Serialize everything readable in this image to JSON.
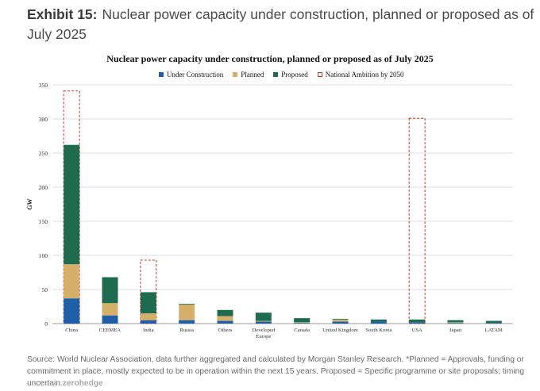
{
  "exhibit": {
    "label": "Exhibit 15:",
    "title": "Nuclear power capacity under construction, planned or proposed as of July 2025"
  },
  "chart_data": {
    "type": "bar",
    "stacked": true,
    "title": "Nuclear power capacity under construction, planned or proposed as of July 2025",
    "ylabel": "GW",
    "ylim": [
      0,
      350
    ],
    "yticks": [
      0,
      50,
      100,
      150,
      200,
      250,
      300,
      350
    ],
    "categories": [
      [
        "China"
      ],
      [
        "CEEMEA"
      ],
      [
        "India"
      ],
      [
        "Russia"
      ],
      [
        "Others"
      ],
      [
        "Developed",
        "Europe"
      ],
      [
        "Canada"
      ],
      [
        "United Kingdom"
      ],
      [
        "South Korea"
      ],
      [
        "USA"
      ],
      [
        "Japan"
      ],
      [
        "LATAM"
      ]
    ],
    "series": [
      {
        "name": "Under Construction",
        "color": "#1f5fa8",
        "values": [
          37,
          12,
          5,
          5,
          4,
          3,
          1,
          3,
          3,
          2,
          1,
          1
        ]
      },
      {
        "name": "Planned",
        "color": "#d4b06a",
        "values": [
          50,
          18,
          10,
          23,
          7,
          1,
          1,
          3,
          0,
          0,
          1,
          0
        ]
      },
      {
        "name": "Proposed",
        "color": "#1f6b4f",
        "values": [
          175,
          38,
          31,
          1,
          9,
          12,
          6,
          1,
          3,
          4,
          3,
          3
        ]
      }
    ],
    "ambition": {
      "name": "National Ambition by 2050",
      "color": "#c0392b",
      "values": [
        341,
        null,
        93,
        null,
        null,
        null,
        null,
        null,
        null,
        301,
        null,
        null
      ]
    },
    "legend_position": "top-center",
    "grid": true
  },
  "source": {
    "text": "Source: World Nuclear Association, data further aggregated and calculated by Morgan Stanley Research. *Planned = Approvals, funding or commitment in place, mostly expected to be in operation within the next 15 years. Proposed = Specific programme or site proposals; timing uncertain.",
    "watermark": "zerohedge"
  }
}
